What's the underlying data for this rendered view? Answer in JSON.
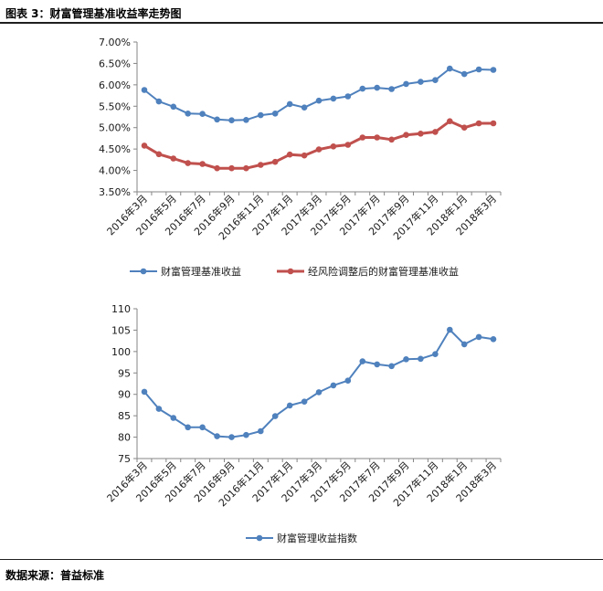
{
  "header": {
    "title": "图表 3：财富管理基准收益率走势图"
  },
  "footer": {
    "source": "数据来源：普益标准"
  },
  "chart_data": [
    {
      "type": "line",
      "x": [
        "2016年3月",
        "2016年4月",
        "2016年5月",
        "2016年6月",
        "2016年7月",
        "2016年8月",
        "2016年9月",
        "2016年10月",
        "2016年11月",
        "2016年12月",
        "2017年1月",
        "2017年2月",
        "2017年3月",
        "2017年4月",
        "2017年5月",
        "2017年6月",
        "2017年7月",
        "2017年8月",
        "2017年9月",
        "2017年10月",
        "2017年11月",
        "2017年12月",
        "2018年1月",
        "2018年2月",
        "2018年3月"
      ],
      "xticklabels": [
        "2016年3月",
        "2016年5月",
        "2016年7月",
        "2016年9月",
        "2016年11月",
        "2017年1月",
        "2017年3月",
        "2017年5月",
        "2017年7月",
        "2017年9月",
        "2017年11月",
        "2018年1月",
        "2018年3月"
      ],
      "yticklabels": [
        "3.50%",
        "4.00%",
        "4.50%",
        "5.00%",
        "5.50%",
        "6.00%",
        "6.50%",
        "7.00%"
      ],
      "ylim": [
        3.5,
        7.0
      ],
      "yticks": [
        3.5,
        4.0,
        4.5,
        5.0,
        5.5,
        6.0,
        6.5,
        7.0
      ],
      "grid": false,
      "legend": "bottom",
      "series": [
        {
          "name": "财富管理基准收益",
          "color": "#4f81bd",
          "values": [
            5.88,
            5.61,
            5.49,
            5.33,
            5.32,
            5.19,
            5.17,
            5.18,
            5.29,
            5.33,
            5.55,
            5.47,
            5.63,
            5.68,
            5.73,
            5.91,
            5.93,
            5.9,
            6.02,
            6.07,
            6.11,
            6.38,
            6.25,
            6.36,
            6.35
          ]
        },
        {
          "name": "经风险调整后的财富管理基准收益",
          "color": "#c0504d",
          "values": [
            4.58,
            4.38,
            4.28,
            4.17,
            4.15,
            4.05,
            4.05,
            4.05,
            4.13,
            4.2,
            4.37,
            4.35,
            4.49,
            4.56,
            4.6,
            4.77,
            4.77,
            4.72,
            4.83,
            4.86,
            4.9,
            5.15,
            5.0,
            5.1,
            5.1
          ]
        }
      ]
    },
    {
      "type": "line",
      "x": [
        "2016年3月",
        "2016年4月",
        "2016年5月",
        "2016年6月",
        "2016年7月",
        "2016年8月",
        "2016年9月",
        "2016年10月",
        "2016年11月",
        "2016年12月",
        "2017年1月",
        "2017年2月",
        "2017年3月",
        "2017年4月",
        "2017年5月",
        "2017年6月",
        "2017年7月",
        "2017年8月",
        "2017年9月",
        "2017年10月",
        "2017年11月",
        "2017年12月",
        "2018年1月",
        "2018年2月",
        "2018年3月"
      ],
      "xticklabels": [
        "2016年3月",
        "2016年5月",
        "2016年7月",
        "2016年9月",
        "2016年11月",
        "2017年1月",
        "2017年3月",
        "2017年5月",
        "2017年7月",
        "2017年9月",
        "2017年11月",
        "2018年1月",
        "2018年3月"
      ],
      "yticklabels": [
        "75",
        "80",
        "85",
        "90",
        "95",
        "100",
        "105",
        "110"
      ],
      "ylim": [
        75,
        110
      ],
      "yticks": [
        75,
        80,
        85,
        90,
        95,
        100,
        105,
        110
      ],
      "grid": false,
      "legend": "bottom",
      "series": [
        {
          "name": "财富管理收益指数",
          "color": "#4f81bd",
          "values": [
            90.6,
            86.6,
            84.5,
            82.3,
            82.3,
            80.2,
            80.0,
            80.5,
            81.4,
            84.9,
            87.4,
            88.3,
            90.5,
            92.1,
            93.2,
            97.7,
            97.0,
            96.6,
            98.2,
            98.3,
            99.4,
            105.1,
            101.7,
            103.4,
            102.9
          ]
        }
      ]
    }
  ]
}
